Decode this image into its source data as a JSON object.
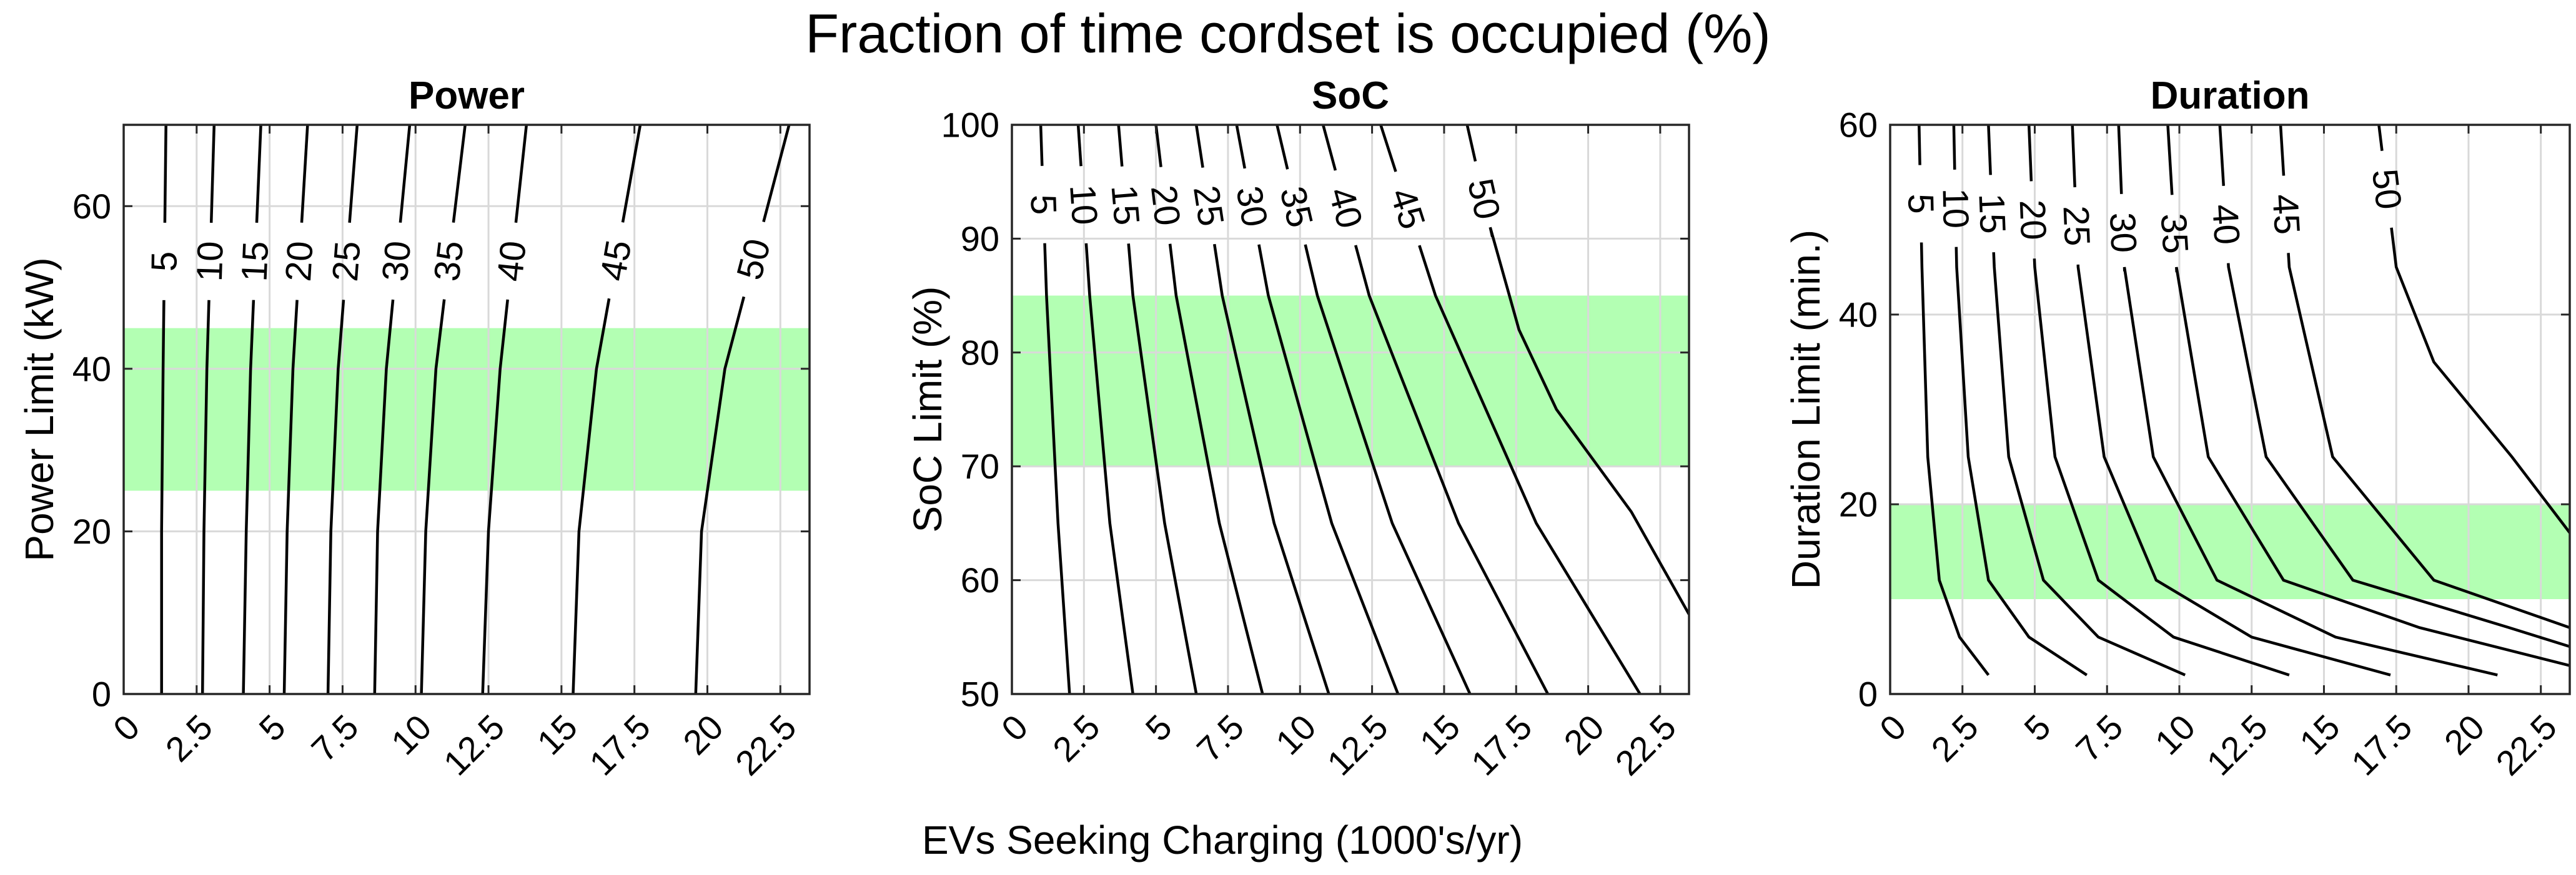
{
  "figure": {
    "suptitle": "Fraction of time cordset is occupied (%)",
    "shared_xlabel": "EVs Seeking Charging (1000's/yr)"
  },
  "colors": {
    "band": "#b3ffb3",
    "grid": "#d9d9d9",
    "line": "#000000",
    "axis": "#262626"
  },
  "chart_data": [
    {
      "type": "contour",
      "title": "Power",
      "ylabel": "Power Limit (kW)",
      "xlim": [
        0,
        23.5
      ],
      "ylim": [
        0,
        70
      ],
      "xticks": [
        "0",
        "2.5",
        "5",
        "7.5",
        "10",
        "12.5",
        "15",
        "17.5",
        "20",
        "22.5"
      ],
      "yticks": [
        "0",
        "20",
        "40",
        "60"
      ],
      "grid": true,
      "highlight_band": [
        25,
        45
      ],
      "contours": [
        {
          "level": "5",
          "points": [
            [
              1.3,
              0
            ],
            [
              1.3,
              20
            ],
            [
              1.35,
              40
            ],
            [
              1.45,
              70
            ]
          ]
        },
        {
          "level": "10",
          "points": [
            [
              2.7,
              0
            ],
            [
              2.75,
              20
            ],
            [
              2.85,
              40
            ],
            [
              3.1,
              70
            ]
          ]
        },
        {
          "level": "15",
          "points": [
            [
              4.1,
              0
            ],
            [
              4.2,
              20
            ],
            [
              4.35,
              40
            ],
            [
              4.7,
              70
            ]
          ]
        },
        {
          "level": "20",
          "points": [
            [
              5.5,
              0
            ],
            [
              5.6,
              20
            ],
            [
              5.8,
              40
            ],
            [
              6.3,
              70
            ]
          ]
        },
        {
          "level": "25",
          "points": [
            [
              7.0,
              0
            ],
            [
              7.1,
              20
            ],
            [
              7.35,
              40
            ],
            [
              8.0,
              70
            ]
          ]
        },
        {
          "level": "30",
          "points": [
            [
              8.6,
              0
            ],
            [
              8.7,
              20
            ],
            [
              9.0,
              40
            ],
            [
              9.8,
              70
            ]
          ]
        },
        {
          "level": "35",
          "points": [
            [
              10.2,
              0
            ],
            [
              10.35,
              20
            ],
            [
              10.7,
              40
            ],
            [
              11.7,
              70
            ]
          ]
        },
        {
          "level": "40",
          "points": [
            [
              12.3,
              0
            ],
            [
              12.5,
              20
            ],
            [
              12.9,
              40
            ],
            [
              13.8,
              70
            ]
          ]
        },
        {
          "level": "45",
          "points": [
            [
              15.4,
              0
            ],
            [
              15.6,
              20
            ],
            [
              16.2,
              40
            ],
            [
              17.7,
              70
            ]
          ]
        },
        {
          "level": "50",
          "points": [
            [
              19.6,
              0
            ],
            [
              19.8,
              20
            ],
            [
              20.6,
              40
            ],
            [
              22.8,
              70
            ]
          ]
        }
      ]
    },
    {
      "type": "contour",
      "title": "SoC",
      "ylabel": "SoC Limit (%)",
      "xlim": [
        0,
        23.5
      ],
      "ylim": [
        50,
        100
      ],
      "xticks": [
        "0",
        "2.5",
        "5",
        "7.5",
        "10",
        "12.5",
        "15",
        "17.5",
        "20",
        "22.5"
      ],
      "yticks": [
        "50",
        "60",
        "70",
        "80",
        "90",
        "100"
      ],
      "grid": true,
      "highlight_band": [
        70,
        85
      ],
      "contours": [
        {
          "level": "5",
          "points": [
            [
              2.0,
              50
            ],
            [
              1.6,
              65
            ],
            [
              1.2,
              85
            ],
            [
              1.0,
              100
            ]
          ]
        },
        {
          "level": "10",
          "points": [
            [
              4.2,
              50
            ],
            [
              3.4,
              65
            ],
            [
              2.7,
              85
            ],
            [
              2.3,
              100
            ]
          ]
        },
        {
          "level": "15",
          "points": [
            [
              6.4,
              50
            ],
            [
              5.3,
              65
            ],
            [
              4.2,
              85
            ],
            [
              3.7,
              100
            ]
          ]
        },
        {
          "level": "20",
          "points": [
            [
              8.7,
              50
            ],
            [
              7.2,
              65
            ],
            [
              5.7,
              85
            ],
            [
              5.0,
              100
            ]
          ]
        },
        {
          "level": "25",
          "points": [
            [
              11.0,
              50
            ],
            [
              9.1,
              65
            ],
            [
              7.3,
              85
            ],
            [
              6.4,
              100
            ]
          ]
        },
        {
          "level": "30",
          "points": [
            [
              13.4,
              50
            ],
            [
              11.1,
              65
            ],
            [
              8.9,
              85
            ],
            [
              7.8,
              100
            ]
          ]
        },
        {
          "level": "35",
          "points": [
            [
              15.9,
              50
            ],
            [
              13.2,
              65
            ],
            [
              10.6,
              85
            ],
            [
              9.2,
              100
            ]
          ]
        },
        {
          "level": "40",
          "points": [
            [
              18.6,
              50
            ],
            [
              15.5,
              65
            ],
            [
              12.4,
              85
            ],
            [
              10.8,
              100
            ]
          ]
        },
        {
          "level": "45",
          "points": [
            [
              21.8,
              50
            ],
            [
              18.2,
              65
            ],
            [
              14.7,
              85
            ],
            [
              12.8,
              100
            ]
          ]
        },
        {
          "level": "50",
          "points": [
            [
              23.5,
              57
            ],
            [
              21.5,
              66
            ],
            [
              18.9,
              75
            ],
            [
              17.6,
              82
            ],
            [
              16.6,
              91
            ],
            [
              15.8,
              100
            ]
          ]
        }
      ]
    },
    {
      "type": "contour",
      "title": "Duration",
      "ylabel": "Duration Limit (min.)",
      "xlim": [
        0,
        23.5
      ],
      "ylim": [
        0,
        60
      ],
      "xticks": [
        "0",
        "2.5",
        "5",
        "7.5",
        "10",
        "12.5",
        "15",
        "17.5",
        "20",
        "22.5"
      ],
      "yticks": [
        "0",
        "20",
        "40",
        "60"
      ],
      "grid": true,
      "highlight_band": [
        10,
        20
      ],
      "contours": [
        {
          "level": "5",
          "points": [
            [
              3.4,
              2
            ],
            [
              2.4,
              6
            ],
            [
              1.7,
              12
            ],
            [
              1.3,
              25
            ],
            [
              1.1,
              45
            ],
            [
              1.0,
              60
            ]
          ]
        },
        {
          "level": "10",
          "points": [
            [
              6.8,
              2
            ],
            [
              4.8,
              6
            ],
            [
              3.4,
              12
            ],
            [
              2.7,
              25
            ],
            [
              2.3,
              45
            ],
            [
              2.2,
              60
            ]
          ]
        },
        {
          "level": "15",
          "points": [
            [
              10.2,
              2
            ],
            [
              7.2,
              6
            ],
            [
              5.3,
              12
            ],
            [
              4.1,
              25
            ],
            [
              3.6,
              45
            ],
            [
              3.4,
              60
            ]
          ]
        },
        {
          "level": "20",
          "points": [
            [
              13.8,
              2
            ],
            [
              9.8,
              6
            ],
            [
              7.2,
              12
            ],
            [
              5.7,
              25
            ],
            [
              5.0,
              45
            ],
            [
              4.8,
              60
            ]
          ]
        },
        {
          "level": "25",
          "points": [
            [
              17.3,
              2
            ],
            [
              12.5,
              6
            ],
            [
              9.2,
              12
            ],
            [
              7.4,
              25
            ],
            [
              6.5,
              45
            ],
            [
              6.3,
              60
            ]
          ]
        },
        {
          "level": "30",
          "points": [
            [
              21.0,
              2
            ],
            [
              15.4,
              6
            ],
            [
              11.3,
              12
            ],
            [
              9.1,
              25
            ],
            [
              8.1,
              45
            ],
            [
              7.9,
              60
            ]
          ]
        },
        {
          "level": "35",
          "points": [
            [
              23.5,
              3
            ],
            [
              18.3,
              7
            ],
            [
              13.6,
              12
            ],
            [
              11.0,
              25
            ],
            [
              9.9,
              45
            ],
            [
              9.6,
              60
            ]
          ]
        },
        {
          "level": "40",
          "points": [
            [
              23.5,
              5
            ],
            [
              21.4,
              7
            ],
            [
              16.0,
              12
            ],
            [
              13.0,
              25
            ],
            [
              11.7,
              45
            ],
            [
              11.4,
              60
            ]
          ]
        },
        {
          "level": "45",
          "points": [
            [
              23.5,
              7
            ],
            [
              18.8,
              12
            ],
            [
              15.3,
              25
            ],
            [
              13.8,
              45
            ],
            [
              13.5,
              60
            ]
          ]
        },
        {
          "level": "50",
          "points": [
            [
              23.5,
              17
            ],
            [
              21.5,
              25
            ],
            [
              18.8,
              35
            ],
            [
              17.5,
              45
            ],
            [
              16.9,
              60
            ]
          ]
        }
      ]
    }
  ]
}
